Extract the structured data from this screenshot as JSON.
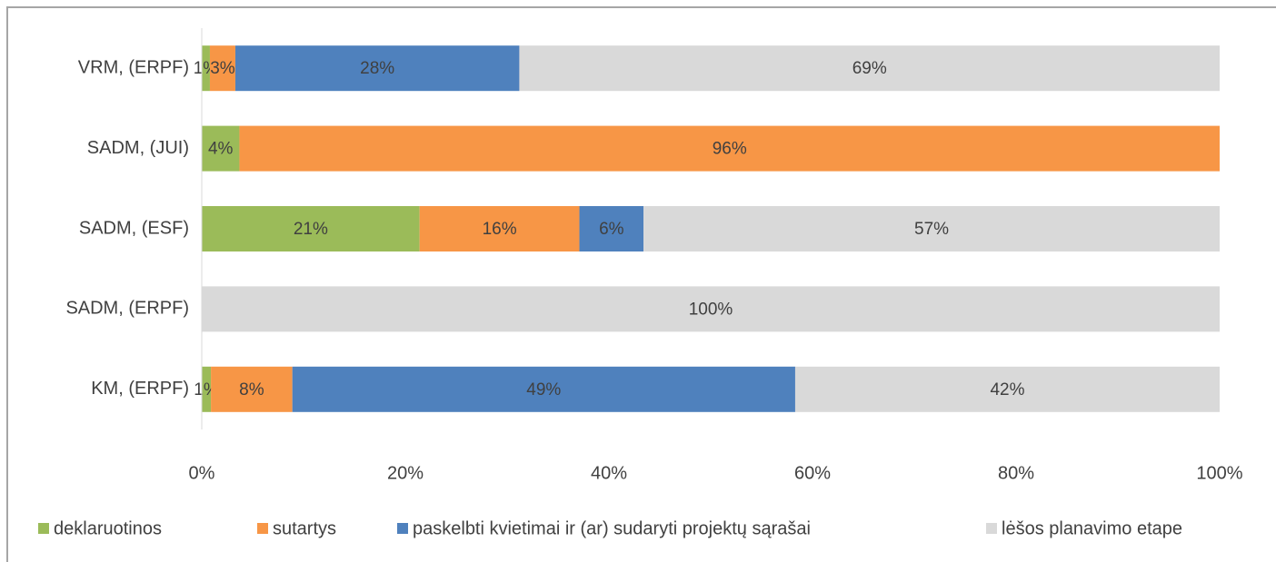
{
  "chart_data": {
    "type": "stacked_barh",
    "categories": [
      "VRM, (ERPF)",
      "SADM, (JUI)",
      "SADM, (ESF)",
      "SADM, (ERPF)",
      "KM, (ERPF)"
    ],
    "series": [
      {
        "name": "deklaruotinos",
        "color": "#9bbb59",
        "values": [
          0.8,
          3.7,
          21.4,
          0,
          0.9
        ],
        "value_labels": [
          "1%",
          "4%",
          "21%",
          null,
          "1%"
        ]
      },
      {
        "name": "sutartys",
        "color": "#f79646",
        "values": [
          2.5,
          96.3,
          15.7,
          0,
          8.0
        ],
        "value_labels": [
          "3%",
          "96%",
          "16%",
          null,
          "8%"
        ]
      },
      {
        "name": "paskelbti kvietimai ir (ar) sudaryti projektų sąrašai",
        "color": "#4f81bd",
        "values": [
          27.9,
          0,
          6.3,
          0,
          49.4
        ],
        "value_labels": [
          "28%",
          null,
          "6%",
          null,
          "49%"
        ]
      },
      {
        "name": "lėšos planavimo etape",
        "color": "#d9d9d9",
        "values": [
          68.8,
          0,
          56.6,
          100,
          41.7
        ],
        "value_labels": [
          "69%",
          null,
          "57%",
          "100%",
          "42%"
        ]
      }
    ],
    "xlim": [
      0,
      100
    ],
    "xticks": [
      {
        "value": 0,
        "label": "0%"
      },
      {
        "value": 20,
        "label": "20%"
      },
      {
        "value": 40,
        "label": "40%"
      },
      {
        "value": 60,
        "label": "60%"
      },
      {
        "value": 80,
        "label": "80%"
      },
      {
        "value": 100,
        "label": "100%"
      }
    ],
    "legend": "bottom"
  }
}
